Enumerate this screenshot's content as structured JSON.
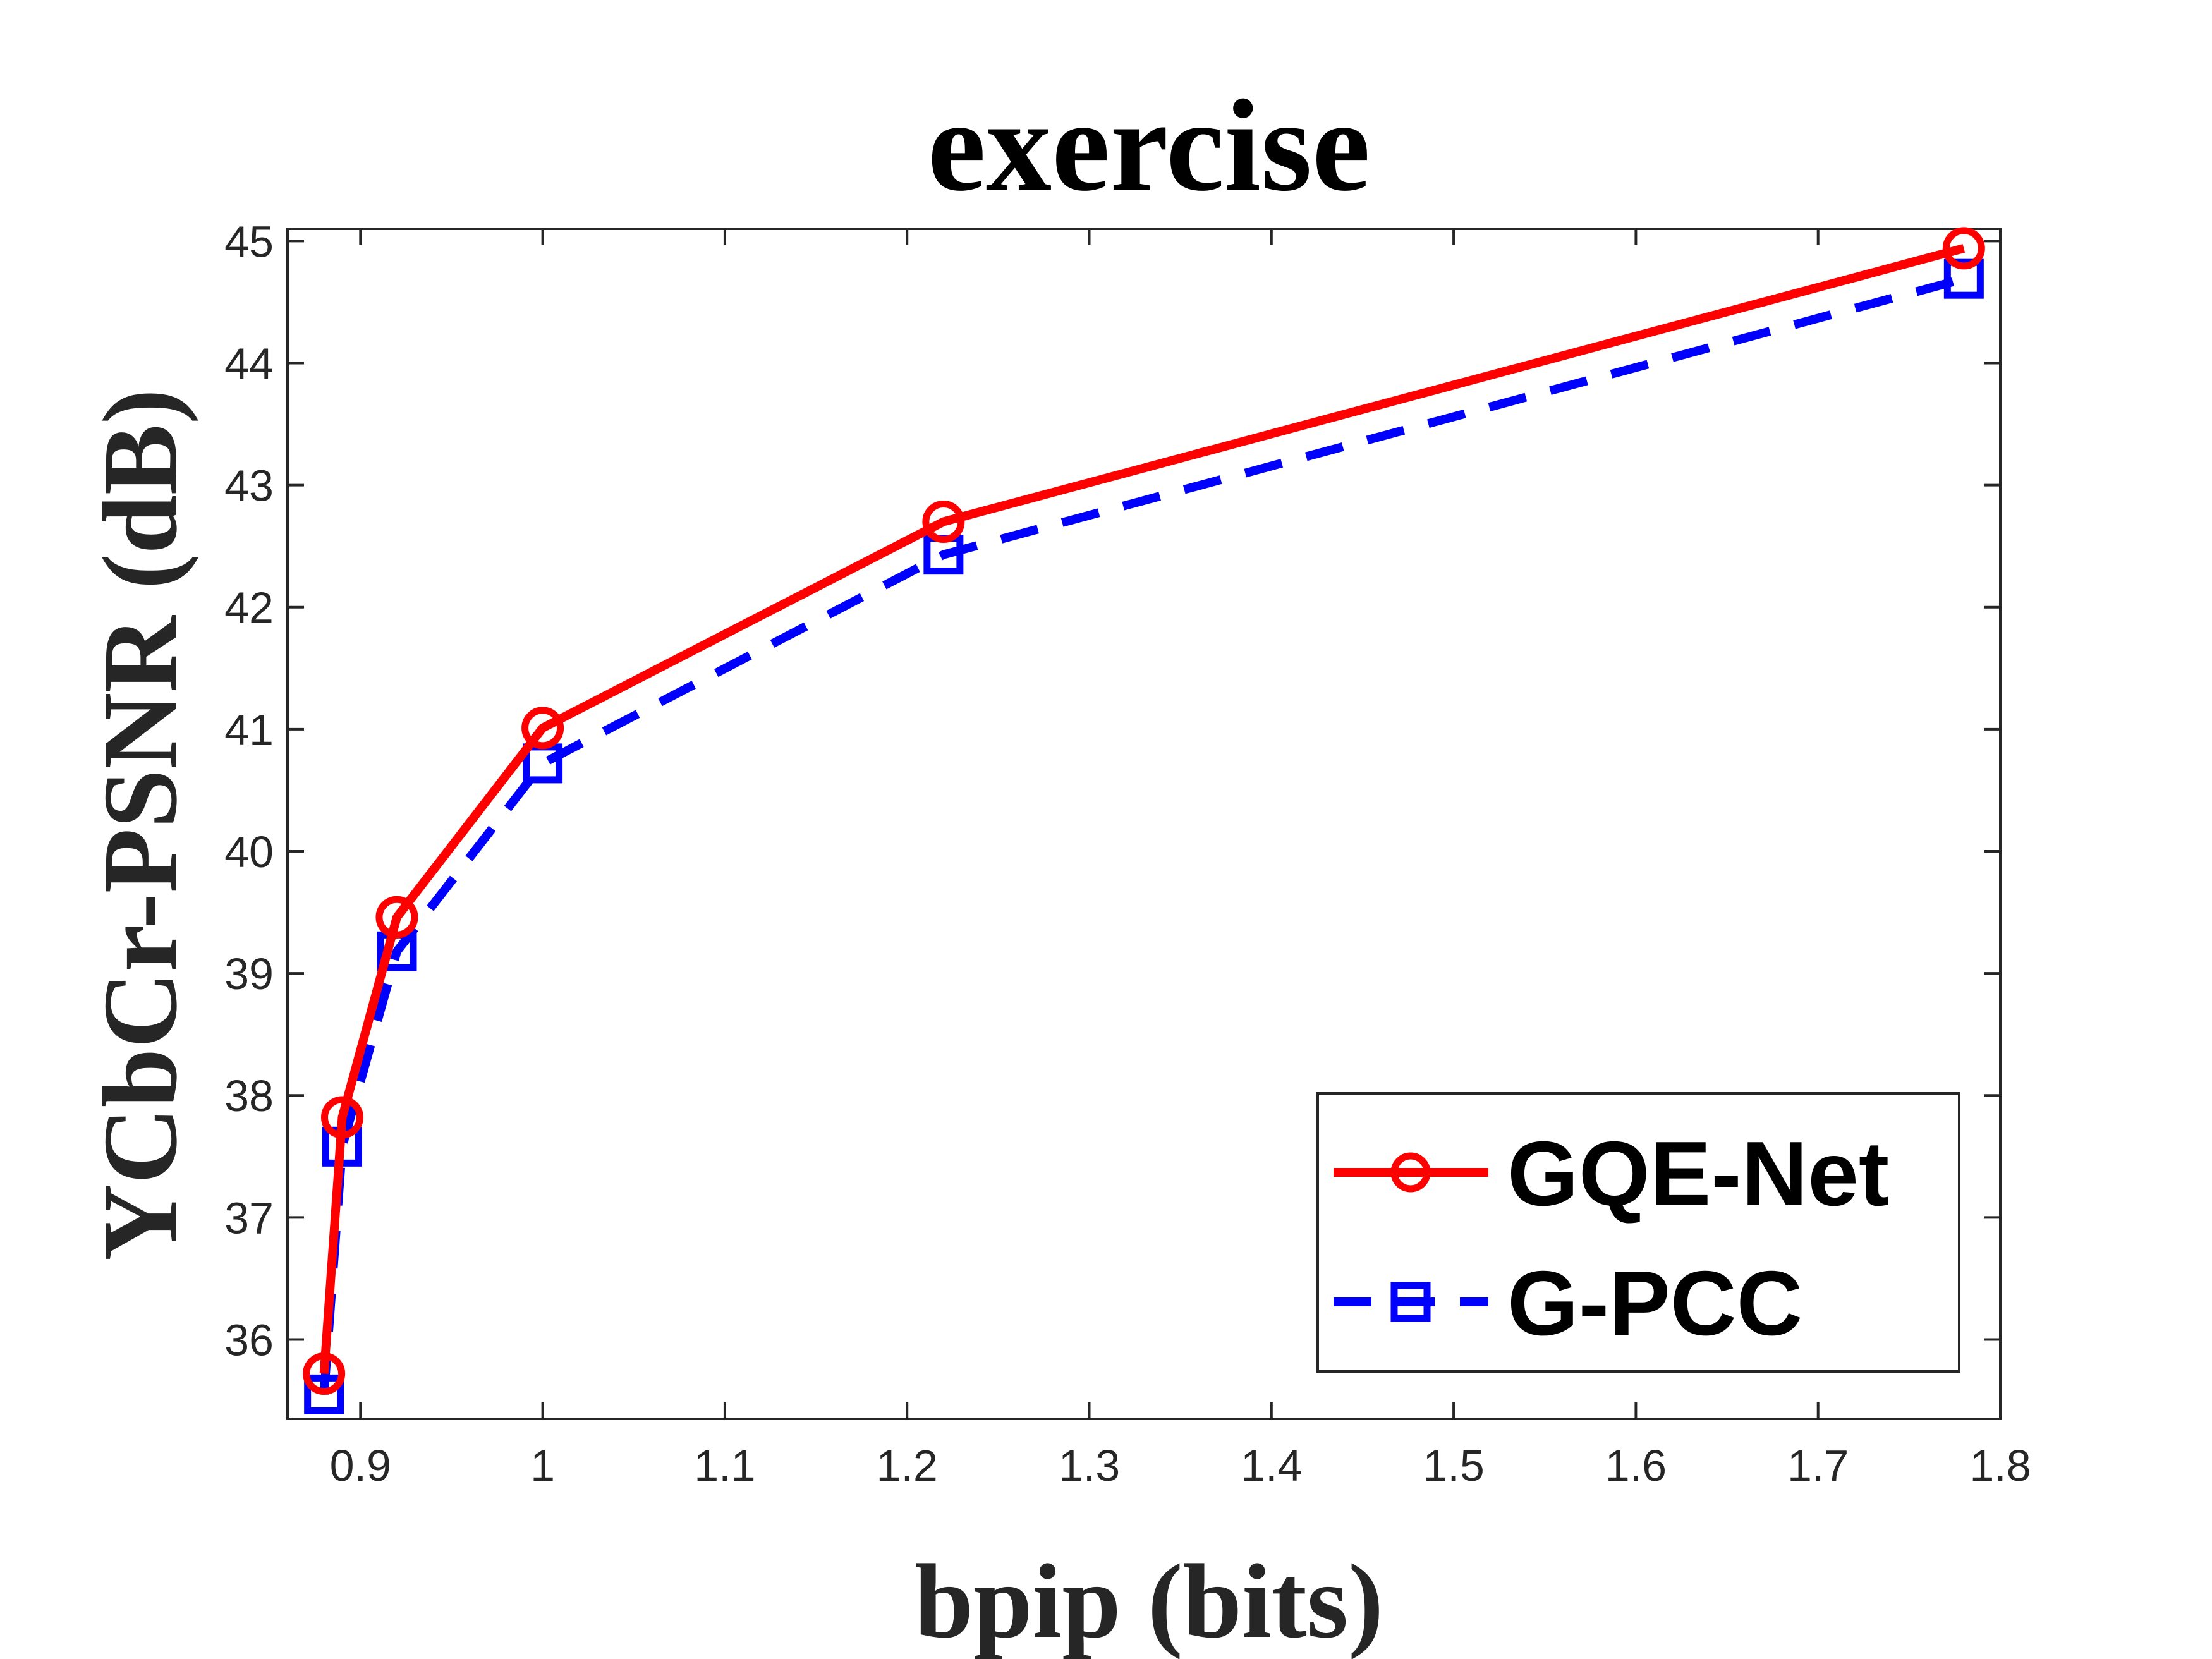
{
  "chart_data": {
    "type": "line",
    "title": "exercise",
    "xlabel": "bpip (bits)",
    "ylabel": "YCbCr-PSNR (dB)",
    "xlim": [
      0.86,
      1.8
    ],
    "ylim": [
      35.35,
      45.1
    ],
    "xticks": [
      0.9,
      1,
      1.1,
      1.2,
      1.3,
      1.4,
      1.5,
      1.6,
      1.7,
      1.8
    ],
    "xtick_labels": [
      "0.9",
      "1",
      "1.1",
      "1.2",
      "1.3",
      "1.4",
      "1.5",
      "1.6",
      "1.7",
      "1.8"
    ],
    "yticks": [
      36,
      37,
      38,
      39,
      40,
      41,
      42,
      43,
      44,
      45
    ],
    "ytick_labels": [
      "36",
      "37",
      "38",
      "39",
      "40",
      "41",
      "42",
      "43",
      "44",
      "45"
    ],
    "grid": false,
    "legend_position": "bottom-right",
    "series": [
      {
        "name": "GQE-Net",
        "color": "#ff0000",
        "line_style": "solid",
        "marker": "circle",
        "x": [
          0.88,
          0.89,
          0.92,
          1.0,
          1.22,
          1.78
        ],
        "y": [
          35.72,
          37.82,
          39.46,
          41.01,
          42.7,
          44.94
        ]
      },
      {
        "name": "G-PCC",
        "color": "#0000ff",
        "line_style": "dashed",
        "marker": "square",
        "x": [
          0.88,
          0.89,
          0.92,
          1.0,
          1.22,
          1.78
        ],
        "y": [
          35.55,
          37.58,
          39.18,
          40.72,
          42.43,
          44.69
        ]
      }
    ]
  }
}
